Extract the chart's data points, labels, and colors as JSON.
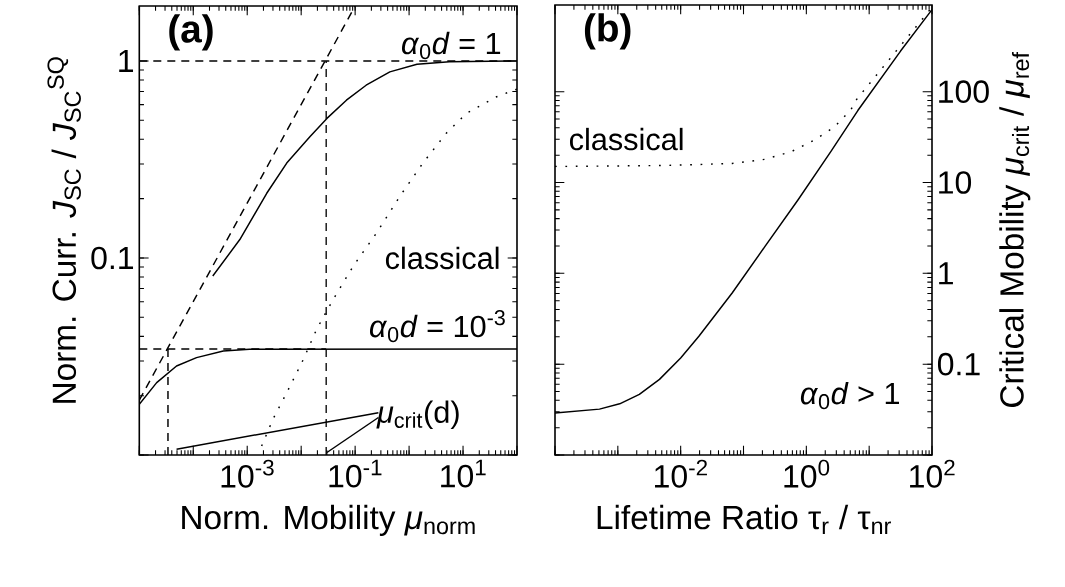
{
  "chart_data": [
    {
      "type": "line",
      "log": "xy",
      "xlabel": "Norm. Mobility *μ*$_{norm}$",
      "ylabel": "Norm. Curr. *J*$_{SC}$ / *J*$_{SC}$$^{SQ}$",
      "xlim": [
        1e-05,
        100
      ],
      "ylim": [
        0.01,
        1.9
      ],
      "xticks": [
        {
          "value": 1e-05,
          "label": null
        },
        {
          "value": 0.0001,
          "label": null
        },
        {
          "value": 0.001,
          "label": "10$^{-3}$"
        },
        {
          "value": 0.01,
          "label": null
        },
        {
          "value": 0.1,
          "label": "10$^{-1}$"
        },
        {
          "value": 1,
          "label": null
        },
        {
          "value": 10,
          "label": "10$^{1}$"
        },
        {
          "value": 100,
          "label": null
        }
      ],
      "yticks": [
        {
          "value": 0.01,
          "label": null
        },
        0.1,
        1
      ],
      "series": [
        {
          "color": "#000000",
          "line_style": "dashed",
          "x": [
            1e-05,
            0.1
          ],
          "values": [
            0.019,
            1.9
          ]
        },
        {
          "color": "#000000",
          "line_style": "dashed",
          "x": [
            1e-05,
            100
          ],
          "values": [
            1,
            1
          ]
        },
        {
          "color": "#000000",
          "line_style": "dashed",
          "x": [
            0.029,
            0.029
          ],
          "values": [
            0.01,
            1
          ]
        },
        {
          "color": "#000000",
          "line_style": "dashed",
          "x": [
            1e-05,
            0.029
          ],
          "values": [
            0.0345,
            0.0345
          ]
        },
        {
          "color": "#000000",
          "line_style": "dashed",
          "x": [
            3.4e-05,
            3.4e-05
          ],
          "values": [
            0.01,
            0.0345
          ]
        },
        {
          "color": "#000000",
          "line_style": "solid",
          "x": [
            0.00023,
            0.00073,
            0.0023,
            0.0054,
            0.0145,
            0.03,
            0.069,
            0.16,
            0.44,
            1.4,
            5.6,
            100
          ],
          "values": [
            0.081,
            0.124,
            0.213,
            0.303,
            0.412,
            0.511,
            0.632,
            0.753,
            0.88,
            0.962,
            0.99,
            1
          ]
        },
        {
          "color": "#000000",
          "line_style": "solid",
          "x": [
            1e-05,
            2.1e-05,
            4.9e-05,
            0.000115,
            0.00036,
            0.0011,
            100
          ],
          "values": [
            0.0181,
            0.0233,
            0.0283,
            0.0312,
            0.0337,
            0.0344,
            0.0345
          ]
        },
        {
          "color": "#000000",
          "line_style": "dotted",
          "x": [
            0.00185,
            0.003,
            0.0054,
            0.011,
            0.0193,
            0.039,
            0.092,
            0.25,
            0.67,
            1.8,
            4.9,
            11.6,
            42,
            100
          ],
          "values": [
            0.0111,
            0.0152,
            0.0207,
            0.0306,
            0.0434,
            0.0615,
            0.0908,
            0.134,
            0.205,
            0.303,
            0.43,
            0.542,
            0.658,
            0.72
          ]
        },
        {
          "color": "#000000",
          "line_style": "solid",
          "x": [
            4.9e-05,
            0.27
          ],
          "values": [
            0.0107,
            0.0164
          ]
        },
        {
          "color": "#000000",
          "line_style": "solid",
          "x": [
            0.03,
            0.27
          ],
          "values": [
            0.0103,
            0.0155
          ]
        }
      ],
      "annotations": [
        "(a)",
        "*α*$_{0}$*d* = 1",
        "*α*$_{0}$*d* = 10$^{-3}$",
        "classical",
        "*μ*$_{crit}$(d)"
      ]
    },
    {
      "type": "line",
      "log": "xy",
      "xlabel": "Lifetime Ratio τ$_{r}$ / τ$_{nr}$",
      "ylabel": "Critical Mobility *μ*$_{crit}$ / *μ*$_{ref}$",
      "xlim": [
        0.0001,
        100
      ],
      "ylim": [
        0.01,
        900
      ],
      "xticks": [
        {
          "value": 0.0001,
          "label": null
        },
        {
          "value": 0.001,
          "label": null
        },
        {
          "value": 0.01,
          "label": "10$^{-2}$"
        },
        {
          "value": 0.1,
          "label": null
        },
        {
          "value": 1,
          "label": "10$^{0}$"
        },
        {
          "value": 10,
          "label": null
        },
        {
          "value": 100,
          "label": "10$^{2}$"
        }
      ],
      "yticks": [
        {
          "value": 0.01,
          "label": null
        },
        0.1,
        1,
        10,
        100
      ],
      "series": [
        {
          "color": "#000000",
          "line_style": "solid",
          "x": [
            0.0001,
            0.00051,
            0.00107,
            0.0022,
            0.0046,
            0.01,
            0.0195,
            0.066,
            0.22,
            0.74,
            2.45,
            6.6,
            31.6,
            100
          ],
          "values": [
            0.029,
            0.032,
            0.0366,
            0.0465,
            0.068,
            0.117,
            0.203,
            0.608,
            1.98,
            6.46,
            21.9,
            62,
            280,
            800
          ]
        },
        {
          "color": "#000000",
          "line_style": "dotted",
          "x": [
            0.0001,
            0.0058,
            0.066,
            0.22,
            0.58,
            1.35,
            2.8,
            5.1,
            6.2,
            100
          ],
          "values": [
            15,
            15.4,
            16.2,
            18,
            21.9,
            29.4,
            41,
            63,
            81,
            850
          ]
        }
      ],
      "annotations": [
        "(b)",
        "classical",
        "*α*$_{0}$*d* > 1"
      ]
    }
  ]
}
